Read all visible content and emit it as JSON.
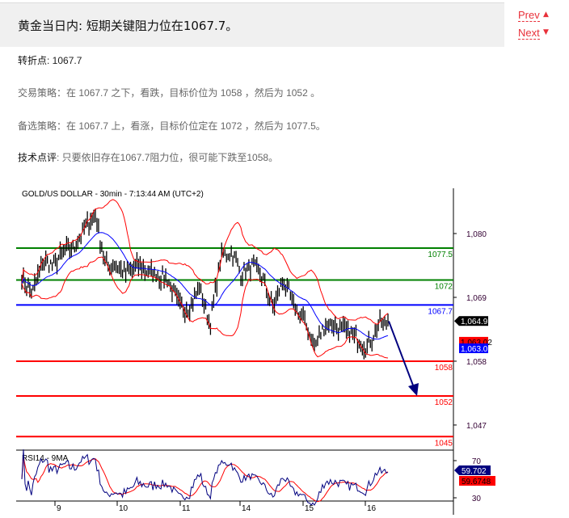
{
  "header": {
    "title": "黄金当日内: 短期关键阻力位在1067.7。",
    "prev_label": "Prev",
    "next_label": "Next",
    "prev_icon": "triangle-up-icon",
    "next_icon": "triangle-down-icon"
  },
  "article": {
    "pivot": {
      "label": "转折点",
      "value": ": 1067.7"
    },
    "strategy": {
      "label": "交易策略：",
      "text": "在 1067.7 之下，看跌，目标价位为 1058 ，然后为 1052 。"
    },
    "alternative": {
      "label": "备选策略：",
      "text": "在 1067.7 上，看涨，目标价位定在 1072 ，然后为 1077.5。"
    },
    "comment": {
      "label": "技术点评",
      "text": ": 只要依旧存在1067.7阻力位，很可能下跌至1058。"
    }
  },
  "colors": {
    "accent": "#e8303a",
    "resistance": "#008000",
    "pivot": "#0000ff",
    "support": "#ff0000",
    "arrow": "#00007f"
  },
  "chart_data": {
    "type": "line",
    "title": "GOLD/US DOLLAR - 30min - 7:13:44 AM (UTC+2)",
    "x_ticks": [
      "9",
      "10",
      "11",
      "14",
      "15",
      "16"
    ],
    "y_ticks": [
      "1,080",
      "1,069",
      "1,058",
      "1,047"
    ],
    "y_tick_values": [
      1080,
      1069,
      1058,
      1047
    ],
    "ylim": [
      1040,
      1089
    ],
    "close_path": [
      1072.5,
      1069.7,
      1075.3,
      1074.5,
      1077,
      1077.5,
      1081,
      1083.5,
      1074.5,
      1074.5,
      1072.9,
      1074.5,
      1073.5,
      1072.9,
      1072,
      1067.7,
      1067,
      1071,
      1064,
      1076,
      1077,
      1073,
      1074.5,
      1072.5,
      1067,
      1072,
      1067.7,
      1065,
      1060.4,
      1064.5,
      1064,
      1063,
      1062,
      1060.4,
      1064,
      1064.9
    ],
    "levels": [
      {
        "label": "1077.5",
        "value": 1077.5,
        "color": "#008000"
      },
      {
        "label": "1072",
        "value": 1072,
        "color": "#008000"
      },
      {
        "label": "1067.7",
        "value": 1067.7,
        "color": "#0000ff"
      },
      {
        "label": "1058",
        "value": 1058,
        "color": "#ff0000"
      },
      {
        "label": "1052",
        "value": 1052,
        "color": "#ff0000"
      },
      {
        "label": "1045",
        "value": 1045,
        "color": "#ff0000"
      }
    ],
    "price_tags": [
      {
        "label": "1,064.93",
        "value": 1064.93,
        "bg": "#000000",
        "fg": "#ffffff"
      },
      {
        "label": "1,063.02",
        "value": 1063.02,
        "bg": "#ff0000",
        "fg": "#000000"
      },
      {
        "label": "1,063.01",
        "value": 1063.01,
        "bg": "#0000ff",
        "fg": "#ffffff"
      }
    ],
    "forecast_arrow": {
      "from": 1064.9,
      "to": 1052,
      "direction": "down"
    },
    "rsi": {
      "title": "RSI14 - 9MA",
      "y_ticks": [
        "70",
        "30"
      ],
      "y_tick_values": [
        70,
        30
      ],
      "tags": [
        {
          "label": "59.702",
          "bg": "#00007f",
          "fg": "#ffffff"
        },
        {
          "label": "59.6748",
          "bg": "#ff0000",
          "fg": "#000000"
        }
      ]
    }
  }
}
